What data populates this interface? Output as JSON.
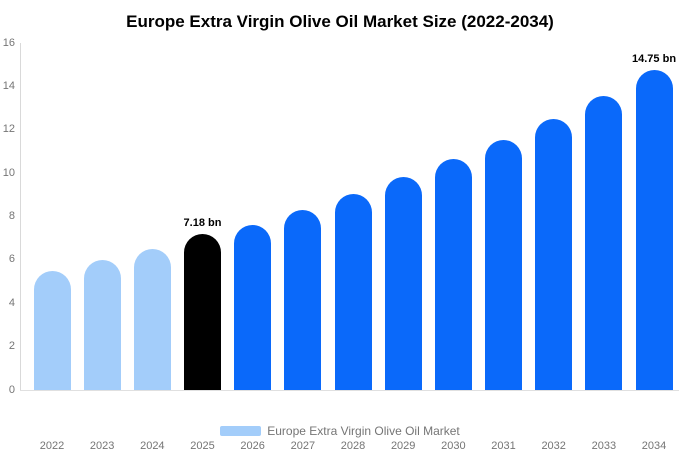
{
  "title": "Europe Extra Virgin Olive Oil Market Size (2022-2034)",
  "legend": {
    "label": "Europe Extra Virgin Olive Oil Market",
    "swatch_color": "#a3cdfa"
  },
  "colors": {
    "historical_bar": "#a3cdfa",
    "highlight_bar": "#000000",
    "forecast_bar": "#0a69fa",
    "axis_line": "#d9d9d9",
    "baseline": "#e0e0e0",
    "tick_text": "#757575",
    "annotation_text": "#000000",
    "background": "#ffffff"
  },
  "chart_data": {
    "type": "bar",
    "title": "Europe Extra Virgin Olive Oil Market Size (2022-2034)",
    "unit": "bn",
    "categories": [
      "2022",
      "2023",
      "2024",
      "2025",
      "2026",
      "2027",
      "2028",
      "2029",
      "2030",
      "2031",
      "2032",
      "2033",
      "2034"
    ],
    "values": [
      5.5,
      5.98,
      6.5,
      7.18,
      7.62,
      8.3,
      9.04,
      9.83,
      10.65,
      11.55,
      12.5,
      13.55,
      14.75
    ],
    "color_keys": [
      "historical_bar",
      "historical_bar",
      "historical_bar",
      "highlight_bar",
      "forecast_bar",
      "forecast_bar",
      "forecast_bar",
      "forecast_bar",
      "forecast_bar",
      "forecast_bar",
      "forecast_bar",
      "forecast_bar",
      "forecast_bar"
    ],
    "annotations": [
      {
        "index": 3,
        "text": "7.18 bn"
      },
      {
        "index": 12,
        "text": "14.75 bn"
      }
    ],
    "xlabel": "",
    "ylabel": "",
    "ylim": [
      0,
      16
    ],
    "yticks": [
      0,
      2,
      4,
      6,
      8,
      10,
      12,
      14,
      16
    ],
    "grid": false,
    "legend_position": "bottom",
    "legend_label": "Europe Extra Virgin Olive Oil Market"
  }
}
